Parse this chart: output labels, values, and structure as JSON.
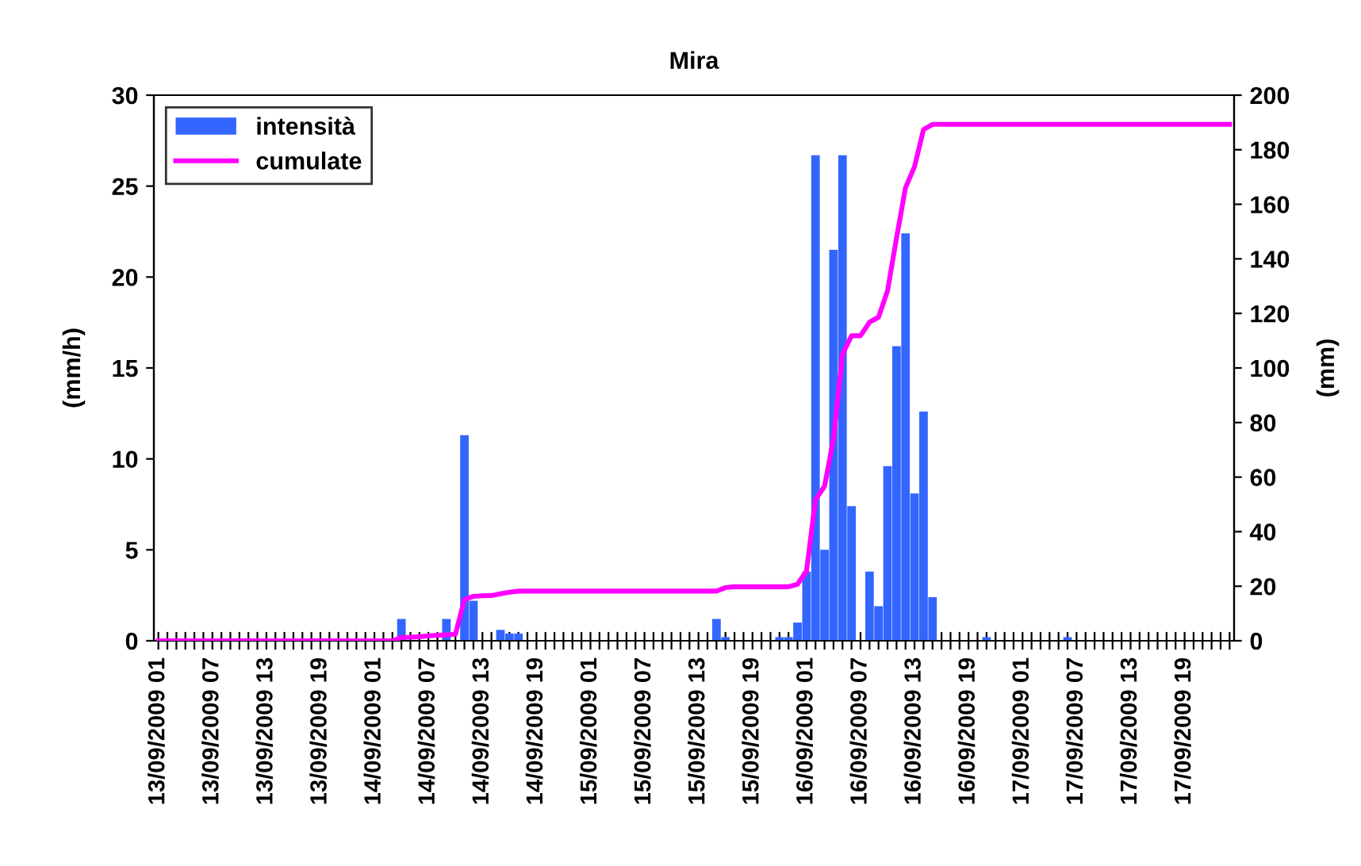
{
  "chart_data": {
    "type": "bar",
    "title": "Mira",
    "ylabel": "(mm/h)",
    "y2label": "(mm)",
    "categories": [
      "13/09/2009 01",
      null,
      null,
      null,
      null,
      null,
      "13/09/2009 07",
      null,
      null,
      null,
      null,
      null,
      "13/09/2009 13",
      null,
      null,
      null,
      null,
      null,
      "13/09/2009 19",
      null,
      null,
      null,
      null,
      null,
      "14/09/2009 01",
      null,
      null,
      null,
      null,
      null,
      "14/09/2009 07",
      null,
      null,
      null,
      null,
      null,
      "14/09/2009 13",
      null,
      null,
      null,
      null,
      null,
      "14/09/2009 19",
      null,
      null,
      null,
      null,
      null,
      "15/09/2009 01",
      null,
      null,
      null,
      null,
      null,
      "15/09/2009 07",
      null,
      null,
      null,
      null,
      null,
      "15/09/2009 13",
      null,
      null,
      null,
      null,
      null,
      "15/09/2009 19",
      null,
      null,
      null,
      null,
      null,
      "16/09/2009 01",
      null,
      null,
      null,
      null,
      null,
      "16/09/2009 07",
      null,
      null,
      null,
      null,
      null,
      "16/09/2009 13",
      null,
      null,
      null,
      null,
      null,
      "16/09/2009 19",
      null,
      null,
      null,
      null,
      null,
      "17/09/2009 01",
      null,
      null,
      null,
      null,
      null,
      "17/09/2009 07",
      null,
      null,
      null,
      null,
      null,
      "17/09/2009 13",
      null,
      null,
      null,
      null,
      null,
      "17/09/2009 19",
      null,
      null,
      null,
      null,
      null
    ],
    "series": [
      {
        "name": "intensità",
        "color": "#3366ff",
        "values": [
          0,
          0,
          0,
          0,
          0,
          0,
          0,
          0,
          0,
          0,
          0,
          0,
          0,
          0,
          0,
          0,
          0,
          0,
          0,
          0,
          0,
          0,
          0,
          0,
          0,
          0,
          0,
          1.2,
          0,
          0,
          0,
          0,
          1.2,
          0,
          11.3,
          2.2,
          0,
          0,
          0.6,
          0.4,
          0.4,
          0,
          0,
          0,
          0,
          0,
          0,
          0,
          0,
          0,
          0,
          0,
          0,
          0,
          0,
          0,
          0,
          0,
          0,
          0,
          0,
          0,
          1.2,
          0.2,
          0,
          0,
          0,
          0,
          0,
          0.2,
          0.2,
          1.0,
          3.8,
          26.7,
          5.0,
          21.5,
          26.7,
          7.4,
          0,
          3.8,
          1.9,
          9.6,
          16.2,
          22.4,
          8.1,
          12.6,
          2.4,
          0,
          0,
          0,
          0,
          0,
          0.2,
          0,
          0,
          0,
          0,
          0,
          0,
          0,
          0,
          0.2,
          0,
          0,
          0,
          0,
          0,
          0,
          0,
          0,
          0,
          0,
          0,
          0,
          0,
          0,
          0,
          0,
          0,
          0
        ]
      },
      {
        "name": "cumulate",
        "type": "line",
        "axis": "y2",
        "color": "#ff00ff",
        "values": [
          0,
          0,
          0,
          0,
          0,
          0,
          0,
          0,
          0,
          0,
          0,
          0,
          0,
          0,
          0,
          0,
          0,
          0,
          0,
          0,
          0,
          0,
          0,
          0,
          0,
          0,
          0,
          1.2,
          1.3,
          1.5,
          1.8,
          2.0,
          2.2,
          2.4,
          15.1,
          16.3,
          16.5,
          16.6,
          17.2,
          17.8,
          18.2,
          18.2,
          18.2,
          18.2,
          18.2,
          18.2,
          18.2,
          18.2,
          18.2,
          18.2,
          18.2,
          18.2,
          18.2,
          18.2,
          18.2,
          18.2,
          18.2,
          18.2,
          18.2,
          18.2,
          18.2,
          18.2,
          18.2,
          19.5,
          19.8,
          19.8,
          19.8,
          19.8,
          19.8,
          19.8,
          19.8,
          20.7,
          25.6,
          51.7,
          56.6,
          74,
          105,
          111.8,
          111.8,
          116.8,
          118.6,
          128.3,
          147.7,
          166.1,
          173.8,
          187.4,
          189.3,
          189.3,
          189.3,
          189.3,
          189.3,
          189.3,
          189.3,
          189.3,
          189.3,
          189.3,
          189.3,
          189.3,
          189.3,
          189.3,
          189.3,
          189.3,
          189.3,
          189.3,
          189.3,
          189.3,
          189.3,
          189.3,
          189.3,
          189.3,
          189.3,
          189.3,
          189.3,
          189.3,
          189.3,
          189.3,
          189.3,
          189.3,
          189.3,
          189.3
        ]
      }
    ],
    "ylim": [
      0,
      30
    ],
    "yticks": [
      0,
      5,
      10,
      15,
      20,
      25,
      30
    ],
    "y2lim": [
      0,
      200
    ],
    "y2ticks": [
      0,
      20,
      40,
      60,
      80,
      100,
      120,
      140,
      160,
      180,
      200
    ],
    "grid": false,
    "legend": "top left",
    "marker": "none",
    "line_style": "solid"
  }
}
